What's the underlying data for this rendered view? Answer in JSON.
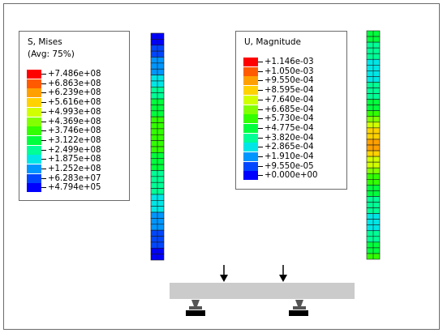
{
  "stress_legend": {
    "title": "S, Mises",
    "subtitle": "(Avg: 75%)",
    "entries": [
      "+7.486e+08",
      "+6.863e+08",
      "+6.239e+08",
      "+5.616e+08",
      "+4.993e+08",
      "+4.369e+08",
      "+3.746e+08",
      "+3.122e+08",
      "+2.499e+08",
      "+1.875e+08",
      "+1.252e+08",
      "+6.283e+07",
      "+4.794e+05"
    ]
  },
  "displacement_legend": {
    "title": "U, Magnitude",
    "entries": [
      "+1.146e-03",
      "+1.050e-03",
      "+9.550e-04",
      "+8.595e-04",
      "+7.640e-04",
      "+6.685e-04",
      "+5.730e-04",
      "+4.775e-04",
      "+3.820e-04",
      "+2.865e-04",
      "+1.910e-04",
      "+9.550e-05",
      "+0.000e+00"
    ]
  },
  "colors": {
    "contour": [
      "#ff0000",
      "#ff5a00",
      "#ffa000",
      "#ffd200",
      "#d2ff00",
      "#82ff00",
      "#32ff00",
      "#00ff3c",
      "#00ff96",
      "#00e6e6",
      "#0096ff",
      "#0046ff",
      "#0000ff"
    ],
    "beam": "#cbcbcb",
    "frame": "#6b6b6b"
  },
  "stress_bar_levels": [
    12,
    12,
    11,
    11,
    10,
    10,
    10,
    9,
    9,
    8,
    8,
    7,
    7,
    7,
    6,
    6,
    6,
    6,
    6,
    6,
    7,
    7,
    7,
    8,
    8,
    8,
    8,
    9,
    9,
    9,
    10,
    10,
    10,
    11,
    11,
    11,
    12,
    12
  ],
  "displacement_bar_levels": [
    7,
    7,
    8,
    8,
    8,
    9,
    9,
    9,
    9,
    8,
    8,
    8,
    7,
    7,
    6,
    5,
    4,
    3,
    3,
    2,
    2,
    3,
    4,
    4,
    5,
    6,
    6,
    7,
    7,
    8,
    8,
    8,
    9,
    9,
    9,
    8,
    8,
    7,
    7,
    6
  ]
}
